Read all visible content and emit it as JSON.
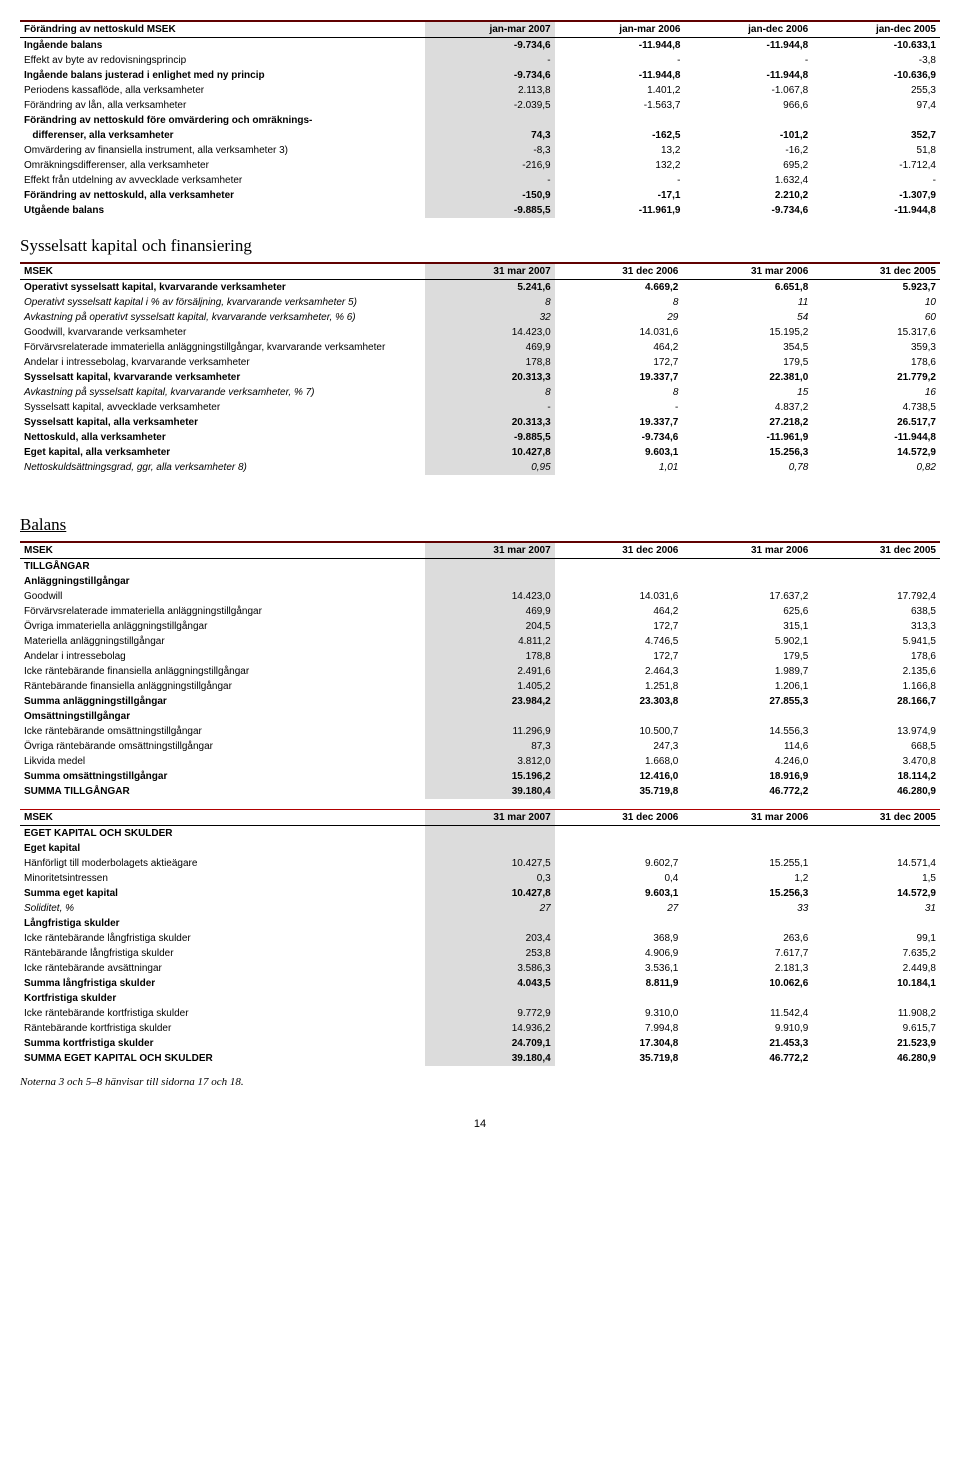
{
  "table1": {
    "headers": [
      "Förändring av nettoskuld MSEK",
      "jan-mar 2007",
      "jan-mar 2006",
      "jan-dec 2006",
      "jan-dec 2005"
    ],
    "rows": [
      {
        "l": "Ingående balans",
        "v": [
          "-9.734,6",
          "-11.944,8",
          "-11.944,8",
          "-10.633,1"
        ],
        "b": true
      },
      {
        "l": "Effekt av byte av redovisningsprincip",
        "v": [
          "-",
          "-",
          "-",
          "-3,8"
        ]
      },
      {
        "l": "Ingående balans justerad i enlighet med ny princip",
        "v": [
          "-9.734,6",
          "-11.944,8",
          "-11.944,8",
          "-10.636,9"
        ],
        "b": true
      },
      {
        "l": "Periodens kassaflöde, alla verksamheter",
        "v": [
          "2.113,8",
          "1.401,2",
          "-1.067,8",
          "255,3"
        ]
      },
      {
        "l": "Förändring av lån, alla verksamheter",
        "v": [
          "-2.039,5",
          "-1.563,7",
          "966,6",
          "97,4"
        ]
      },
      {
        "l": "Förändring av nettoskuld före omvärdering och omräknings-",
        "v": [
          "",
          "",
          "",
          ""
        ],
        "b": true
      },
      {
        "l": "   differenser, alla verksamheter",
        "v": [
          "74,3",
          "-162,5",
          "-101,2",
          "352,7"
        ],
        "b": true
      },
      {
        "l": "Omvärdering av finansiella instrument, alla verksamheter 3)",
        "v": [
          "-8,3",
          "13,2",
          "-16,2",
          "51,8"
        ]
      },
      {
        "l": "Omräkningsdifferenser, alla verksamheter",
        "v": [
          "-216,9",
          "132,2",
          "695,2",
          "-1.712,4"
        ]
      },
      {
        "l": "Effekt från utdelning av avvecklade verksamheter",
        "v": [
          "-",
          "-",
          "1.632,4",
          "-"
        ]
      },
      {
        "l": "Förändring av nettoskuld, alla verksamheter",
        "v": [
          "-150,9",
          "-17,1",
          "2.210,2",
          "-1.307,9"
        ],
        "b": true
      },
      {
        "l": "Utgående balans",
        "v": [
          "-9.885,5",
          "-11.961,9",
          "-9.734,6",
          "-11.944,8"
        ],
        "b": true
      }
    ]
  },
  "section2": {
    "title": "Sysselsatt kapital och finansiering"
  },
  "table2": {
    "headers": [
      "MSEK",
      "31 mar 2007",
      "31 dec 2006",
      "31 mar 2006",
      "31 dec 2005"
    ],
    "rows": [
      {
        "l": "Operativt sysselsatt kapital, kvarvarande verksamheter",
        "v": [
          "5.241,6",
          "4.669,2",
          "6.651,8",
          "5.923,7"
        ],
        "b": true
      },
      {
        "l": "Operativt sysselsatt kapital i % av försäljning, kvarvarande verksamheter 5)",
        "v": [
          "8",
          "8",
          "11",
          "10"
        ],
        "i": true
      },
      {
        "l": "Avkastning på operativt sysselsatt kapital, kvarvarande verksamheter, % 6)",
        "v": [
          "32",
          "29",
          "54",
          "60"
        ],
        "i": true
      },
      {
        "l": "Goodwill, kvarvarande verksamheter",
        "v": [
          "14.423,0",
          "14.031,6",
          "15.195,2",
          "15.317,6"
        ]
      },
      {
        "l": "Förvärvsrelaterade immateriella anläggningstillgångar, kvarvarande verksamheter",
        "v": [
          "469,9",
          "464,2",
          "354,5",
          "359,3"
        ]
      },
      {
        "l": "Andelar i intressebolag, kvarvarande verksamheter",
        "v": [
          "178,8",
          "172,7",
          "179,5",
          "178,6"
        ]
      },
      {
        "l": "Sysselsatt kapital, kvarvarande verksamheter",
        "v": [
          "20.313,3",
          "19.337,7",
          "22.381,0",
          "21.779,2"
        ],
        "b": true
      },
      {
        "l": "Avkastning på sysselsatt kapital, kvarvarande verksamheter, % 7)",
        "v": [
          "8",
          "8",
          "15",
          "16"
        ],
        "i": true
      },
      {
        "l": "Sysselsatt kapital, avvecklade verksamheter",
        "v": [
          "-",
          "-",
          "4.837,2",
          "4.738,5"
        ]
      },
      {
        "l": "Sysselsatt kapital, alla verksamheter",
        "v": [
          "20.313,3",
          "19.337,7",
          "27.218,2",
          "26.517,7"
        ],
        "b": true
      },
      {
        "l": "Nettoskuld, alla verksamheter",
        "v": [
          "-9.885,5",
          "-9.734,6",
          "-11.961,9",
          "-11.944,8"
        ],
        "b": true
      },
      {
        "l": "Eget kapital, alla verksamheter",
        "v": [
          "10.427,8",
          "9.603,1",
          "15.256,3",
          "14.572,9"
        ],
        "b": true
      },
      {
        "l": "Nettoskuldsättningsgrad, ggr, alla verksamheter 8)",
        "v": [
          "0,95",
          "1,01",
          "0,78",
          "0,82"
        ],
        "i": true
      }
    ]
  },
  "section3": {
    "title": "Balans"
  },
  "table3": {
    "headers": [
      "MSEK",
      "31 mar 2007",
      "31 dec 2006",
      "31 mar 2006",
      "31 dec 2005"
    ],
    "rows": [
      {
        "l": "TILLGÅNGAR",
        "v": [
          "",
          "",
          "",
          ""
        ],
        "b": true
      },
      {
        "l": "Anläggningstillgångar",
        "v": [
          "",
          "",
          "",
          ""
        ],
        "b": true
      },
      {
        "l": "Goodwill",
        "v": [
          "14.423,0",
          "14.031,6",
          "17.637,2",
          "17.792,4"
        ]
      },
      {
        "l": "Förvärvsrelaterade immateriella anläggningstillgångar",
        "v": [
          "469,9",
          "464,2",
          "625,6",
          "638,5"
        ]
      },
      {
        "l": "Övriga immateriella anläggningstillgångar",
        "v": [
          "204,5",
          "172,7",
          "315,1",
          "313,3"
        ]
      },
      {
        "l": "Materiella anläggningstillgångar",
        "v": [
          "4.811,2",
          "4.746,5",
          "5.902,1",
          "5.941,5"
        ]
      },
      {
        "l": "Andelar i intressebolag",
        "v": [
          "178,8",
          "172,7",
          "179,5",
          "178,6"
        ]
      },
      {
        "l": "Icke räntebärande finansiella anläggningstillgångar",
        "v": [
          "2.491,6",
          "2.464,3",
          "1.989,7",
          "2.135,6"
        ]
      },
      {
        "l": "Räntebärande finansiella anläggningstillgångar",
        "v": [
          "1.405,2",
          "1.251,8",
          "1.206,1",
          "1.166,8"
        ]
      },
      {
        "l": "Summa anläggningstillgångar",
        "v": [
          "23.984,2",
          "23.303,8",
          "27.855,3",
          "28.166,7"
        ],
        "b": true
      },
      {
        "l": "Omsättningstillgångar",
        "v": [
          "",
          "",
          "",
          ""
        ],
        "b": true
      },
      {
        "l": "Icke räntebärande omsättningstillgångar",
        "v": [
          "11.296,9",
          "10.500,7",
          "14.556,3",
          "13.974,9"
        ]
      },
      {
        "l": "Övriga räntebärande omsättningstillgångar",
        "v": [
          "87,3",
          "247,3",
          "114,6",
          "668,5"
        ]
      },
      {
        "l": "Likvida medel",
        "v": [
          "3.812,0",
          "1.668,0",
          "4.246,0",
          "3.470,8"
        ]
      },
      {
        "l": "Summa omsättningstillgångar",
        "v": [
          "15.196,2",
          "12.416,0",
          "18.916,9",
          "18.114,2"
        ],
        "b": true
      },
      {
        "l": "SUMMA TILLGÅNGAR",
        "v": [
          "39.180,4",
          "35.719,8",
          "46.772,2",
          "46.280,9"
        ],
        "b": true
      }
    ]
  },
  "table4": {
    "headers": [
      "MSEK",
      "31 mar 2007",
      "31 dec 2006",
      "31 mar 2006",
      "31 dec 2005"
    ],
    "rows": [
      {
        "l": "EGET KAPITAL OCH SKULDER",
        "v": [
          "",
          "",
          "",
          ""
        ],
        "b": true
      },
      {
        "l": "Eget kapital",
        "v": [
          "",
          "",
          "",
          ""
        ],
        "b": true
      },
      {
        "l": "Hänförligt till moderbolagets aktieägare",
        "v": [
          "10.427,5",
          "9.602,7",
          "15.255,1",
          "14.571,4"
        ]
      },
      {
        "l": "Minoritetsintressen",
        "v": [
          "0,3",
          "0,4",
          "1,2",
          "1,5"
        ]
      },
      {
        "l": "Summa eget kapital",
        "v": [
          "10.427,8",
          "9.603,1",
          "15.256,3",
          "14.572,9"
        ],
        "b": true
      },
      {
        "l": "Soliditet, %",
        "v": [
          "27",
          "27",
          "33",
          "31"
        ],
        "i": true
      },
      {
        "l": "Långfristiga skulder",
        "v": [
          "",
          "",
          "",
          ""
        ],
        "b": true
      },
      {
        "l": "Icke räntebärande långfristiga skulder",
        "v": [
          "203,4",
          "368,9",
          "263,6",
          "99,1"
        ]
      },
      {
        "l": "Räntebärande långfristiga skulder",
        "v": [
          "253,8",
          "4.906,9",
          "7.617,7",
          "7.635,2"
        ]
      },
      {
        "l": "Icke räntebärande avsättningar",
        "v": [
          "3.586,3",
          "3.536,1",
          "2.181,3",
          "2.449,8"
        ]
      },
      {
        "l": "Summa långfristiga skulder",
        "v": [
          "4.043,5",
          "8.811,9",
          "10.062,6",
          "10.184,1"
        ],
        "b": true
      },
      {
        "l": "Kortfristiga skulder",
        "v": [
          "",
          "",
          "",
          ""
        ],
        "b": true
      },
      {
        "l": "Icke räntebärande kortfristiga skulder",
        "v": [
          "9.772,9",
          "9.310,0",
          "11.542,4",
          "11.908,2"
        ]
      },
      {
        "l": "Räntebärande kortfristiga skulder",
        "v": [
          "14.936,2",
          "7.994,8",
          "9.910,9",
          "9.615,7"
        ]
      },
      {
        "l": "Summa kortfristiga skulder",
        "v": [
          "24.709,1",
          "17.304,8",
          "21.453,3",
          "21.523,9"
        ],
        "b": true
      },
      {
        "l": "SUMMA EGET KAPITAL OCH SKULDER",
        "v": [
          "39.180,4",
          "35.719,8",
          "46.772,2",
          "46.280,9"
        ],
        "b": true
      }
    ]
  },
  "footnote": "Noterna 3 och 5–8 hänvisar till sidorna 17 och 18.",
  "pagenum": "14"
}
